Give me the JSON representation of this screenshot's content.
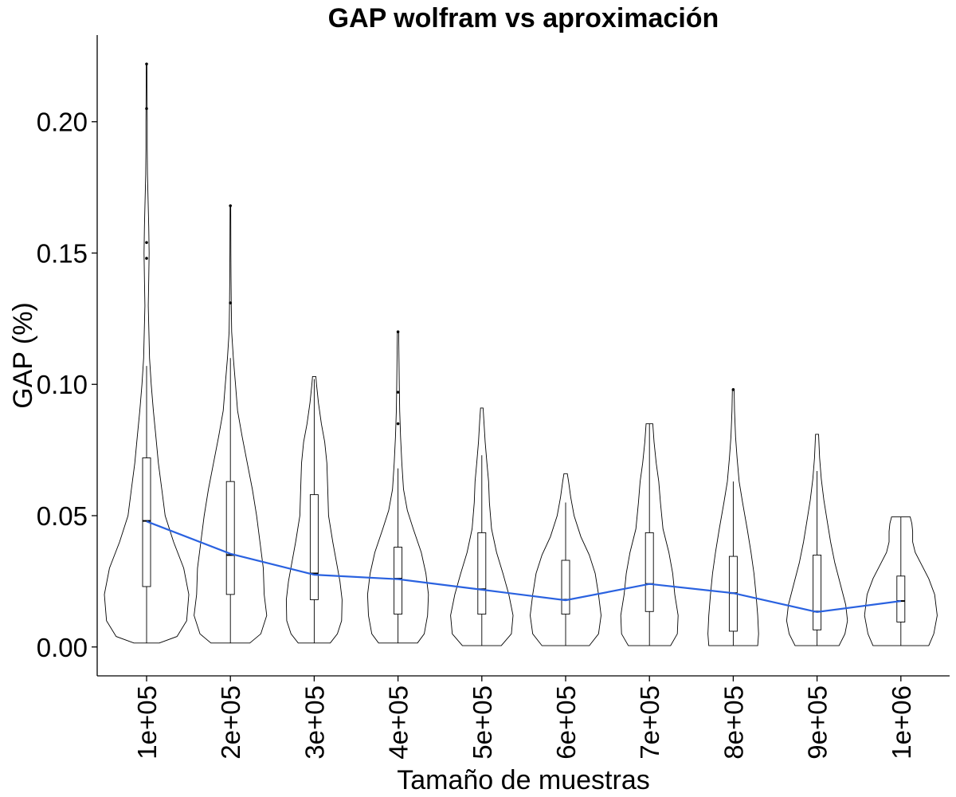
{
  "chart_data": {
    "type": "violin",
    "title": "GAP wolfram vs aproximación",
    "xlabel": "Tamaño de muestras",
    "ylabel": "GAP (%)",
    "ylim": [
      -0.011,
      0.233
    ],
    "yticks": [
      "0.00",
      "0.05",
      "0.10",
      "0.15",
      "0.20"
    ],
    "categories": [
      "1e+05",
      "2e+05",
      "3e+05",
      "4e+05",
      "5e+05",
      "6e+05",
      "7e+05",
      "8e+05",
      "9e+05",
      "1e+06"
    ],
    "grid": false,
    "legend": "none",
    "mean_line_color": "#2a62e0",
    "groups": [
      {
        "min": 0.0015,
        "q1": 0.023,
        "median": 0.048,
        "q3": 0.072,
        "whisker_high": 0.107,
        "max": 0.222,
        "mean": 0.0478,
        "outliers": [
          0.148,
          0.154,
          0.205,
          0.222
        ],
        "density": [
          [
            0.0015,
            0.3
          ],
          [
            0.004,
            0.72
          ],
          [
            0.01,
            0.95
          ],
          [
            0.02,
            1.0
          ],
          [
            0.03,
            0.88
          ],
          [
            0.04,
            0.64
          ],
          [
            0.05,
            0.44
          ],
          [
            0.06,
            0.36
          ],
          [
            0.07,
            0.28
          ],
          [
            0.08,
            0.22
          ],
          [
            0.09,
            0.16
          ],
          [
            0.1,
            0.11
          ],
          [
            0.11,
            0.07
          ],
          [
            0.12,
            0.055
          ],
          [
            0.13,
            0.04
          ],
          [
            0.14,
            0.05
          ],
          [
            0.15,
            0.06
          ],
          [
            0.16,
            0.05
          ],
          [
            0.17,
            0.035
          ],
          [
            0.18,
            0.02
          ],
          [
            0.19,
            0.015
          ],
          [
            0.2,
            0.015
          ],
          [
            0.21,
            0.012
          ],
          [
            0.222,
            0.008
          ]
        ]
      },
      {
        "min": 0.0015,
        "q1": 0.02,
        "median": 0.035,
        "q3": 0.063,
        "whisker_high": 0.11,
        "max": 0.168,
        "mean": 0.0355,
        "outliers": [
          0.131,
          0.168
        ],
        "density": [
          [
            0.0015,
            0.46
          ],
          [
            0.005,
            0.72
          ],
          [
            0.012,
            0.86
          ],
          [
            0.02,
            0.8
          ],
          [
            0.03,
            0.78
          ],
          [
            0.04,
            0.7
          ],
          [
            0.05,
            0.62
          ],
          [
            0.06,
            0.52
          ],
          [
            0.07,
            0.4
          ],
          [
            0.08,
            0.28
          ],
          [
            0.09,
            0.17
          ],
          [
            0.1,
            0.12
          ],
          [
            0.11,
            0.07
          ],
          [
            0.12,
            0.03
          ],
          [
            0.13,
            0.02
          ],
          [
            0.14,
            0.015
          ],
          [
            0.15,
            0.012
          ],
          [
            0.16,
            0.01
          ],
          [
            0.168,
            0.008
          ]
        ]
      },
      {
        "min": 0.0015,
        "q1": 0.018,
        "median": 0.028,
        "q3": 0.058,
        "whisker_high": 0.102,
        "max": 0.103,
        "mean": 0.0275,
        "outliers": [],
        "density": [
          [
            0.0015,
            0.38
          ],
          [
            0.005,
            0.55
          ],
          [
            0.01,
            0.65
          ],
          [
            0.018,
            0.66
          ],
          [
            0.025,
            0.61
          ],
          [
            0.032,
            0.53
          ],
          [
            0.04,
            0.44
          ],
          [
            0.05,
            0.34
          ],
          [
            0.06,
            0.32
          ],
          [
            0.07,
            0.3
          ],
          [
            0.078,
            0.25
          ],
          [
            0.085,
            0.17
          ],
          [
            0.093,
            0.1
          ],
          [
            0.1,
            0.055
          ],
          [
            0.103,
            0.04
          ]
        ]
      },
      {
        "min": 0.0015,
        "q1": 0.0125,
        "median": 0.026,
        "q3": 0.038,
        "whisker_high": 0.068,
        "max": 0.12,
        "mean": 0.0258,
        "outliers": [
          0.085,
          0.097,
          0.12
        ],
        "density": [
          [
            0.0015,
            0.46
          ],
          [
            0.005,
            0.62
          ],
          [
            0.012,
            0.7
          ],
          [
            0.02,
            0.72
          ],
          [
            0.028,
            0.66
          ],
          [
            0.036,
            0.55
          ],
          [
            0.045,
            0.36
          ],
          [
            0.052,
            0.22
          ],
          [
            0.06,
            0.13
          ],
          [
            0.07,
            0.09
          ],
          [
            0.08,
            0.06
          ],
          [
            0.09,
            0.04
          ],
          [
            0.1,
            0.03
          ],
          [
            0.11,
            0.022
          ],
          [
            0.12,
            0.015
          ]
        ]
      },
      {
        "min": 0.0005,
        "q1": 0.0125,
        "median": 0.022,
        "q3": 0.0435,
        "whisker_high": 0.073,
        "max": 0.091,
        "mean": 0.0218,
        "outliers": [],
        "density": [
          [
            0.0005,
            0.46
          ],
          [
            0.005,
            0.7
          ],
          [
            0.012,
            0.74
          ],
          [
            0.02,
            0.64
          ],
          [
            0.028,
            0.5
          ],
          [
            0.036,
            0.35
          ],
          [
            0.045,
            0.23
          ],
          [
            0.055,
            0.18
          ],
          [
            0.063,
            0.16
          ],
          [
            0.07,
            0.12
          ],
          [
            0.078,
            0.08
          ],
          [
            0.086,
            0.05
          ],
          [
            0.091,
            0.03
          ]
        ]
      },
      {
        "min": 0.0005,
        "q1": 0.0125,
        "median": 0.018,
        "q3": 0.033,
        "whisker_high": 0.055,
        "max": 0.066,
        "mean": 0.0178,
        "outliers": [],
        "density": [
          [
            0.0005,
            0.56
          ],
          [
            0.005,
            0.78
          ],
          [
            0.012,
            0.84
          ],
          [
            0.02,
            0.78
          ],
          [
            0.028,
            0.7
          ],
          [
            0.035,
            0.56
          ],
          [
            0.042,
            0.36
          ],
          [
            0.05,
            0.2
          ],
          [
            0.057,
            0.12
          ],
          [
            0.063,
            0.07
          ],
          [
            0.066,
            0.04
          ]
        ]
      },
      {
        "min": 0.0005,
        "q1": 0.0135,
        "median": 0.024,
        "q3": 0.0435,
        "whisker_high": 0.085,
        "max": 0.085,
        "mean": 0.024,
        "outliers": [],
        "density": [
          [
            0.0005,
            0.5
          ],
          [
            0.005,
            0.66
          ],
          [
            0.012,
            0.68
          ],
          [
            0.02,
            0.6
          ],
          [
            0.028,
            0.55
          ],
          [
            0.036,
            0.46
          ],
          [
            0.045,
            0.32
          ],
          [
            0.055,
            0.26
          ],
          [
            0.063,
            0.22
          ],
          [
            0.07,
            0.16
          ],
          [
            0.078,
            0.11
          ],
          [
            0.085,
            0.08
          ]
        ]
      },
      {
        "min": 0.0005,
        "q1": 0.006,
        "median": 0.0205,
        "q3": 0.0345,
        "whisker_high": 0.063,
        "max": 0.098,
        "mean": 0.0205,
        "outliers": [
          0.098
        ],
        "density": [
          [
            0.0005,
            0.58
          ],
          [
            0.005,
            0.6
          ],
          [
            0.012,
            0.58
          ],
          [
            0.02,
            0.54
          ],
          [
            0.028,
            0.49
          ],
          [
            0.036,
            0.42
          ],
          [
            0.045,
            0.33
          ],
          [
            0.055,
            0.22
          ],
          [
            0.063,
            0.14
          ],
          [
            0.072,
            0.09
          ],
          [
            0.08,
            0.055
          ],
          [
            0.09,
            0.03
          ],
          [
            0.098,
            0.02
          ]
        ]
      },
      {
        "min": 0.0005,
        "q1": 0.0065,
        "median": 0.0135,
        "q3": 0.035,
        "whisker_high": 0.067,
        "max": 0.081,
        "mean": 0.0133,
        "outliers": [],
        "density": [
          [
            0.0005,
            0.52
          ],
          [
            0.005,
            0.66
          ],
          [
            0.01,
            0.72
          ],
          [
            0.016,
            0.68
          ],
          [
            0.024,
            0.55
          ],
          [
            0.032,
            0.42
          ],
          [
            0.04,
            0.32
          ],
          [
            0.048,
            0.24
          ],
          [
            0.056,
            0.16
          ],
          [
            0.064,
            0.1
          ],
          [
            0.072,
            0.06
          ],
          [
            0.081,
            0.035
          ]
        ]
      },
      {
        "min": 0.0005,
        "q1": 0.0095,
        "median": 0.0175,
        "q3": 0.027,
        "whisker_high": 0.0495,
        "max": 0.0495,
        "mean": 0.0175,
        "outliers": [],
        "density": [
          [
            0.0005,
            0.66
          ],
          [
            0.005,
            0.78
          ],
          [
            0.012,
            0.86
          ],
          [
            0.02,
            0.8
          ],
          [
            0.026,
            0.66
          ],
          [
            0.031,
            0.5
          ],
          [
            0.036,
            0.34
          ],
          [
            0.04,
            0.28
          ],
          [
            0.044,
            0.28
          ],
          [
            0.047,
            0.26
          ],
          [
            0.0495,
            0.22
          ]
        ]
      }
    ]
  }
}
